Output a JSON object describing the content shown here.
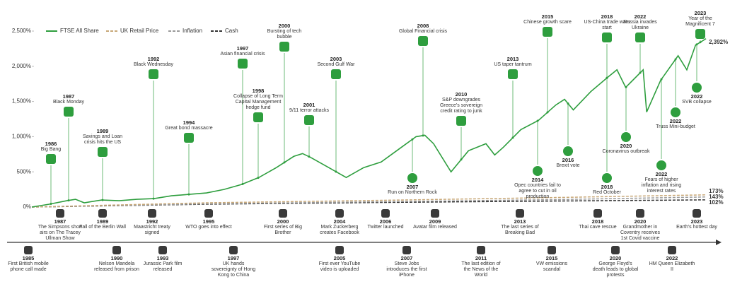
{
  "chart_data": {
    "type": "line",
    "xlim": [
      1985,
      2024
    ],
    "ylim": [
      0,
      2500
    ],
    "yticks": [
      {
        "value": 0,
        "label": "0%"
      },
      {
        "value": 500,
        "label": "500%"
      },
      {
        "value": 1000,
        "label": "1,000%"
      },
      {
        "value": 1500,
        "label": "1,500%"
      },
      {
        "value": 2000,
        "label": "2,000%"
      },
      {
        "value": 2500,
        "label": "2,500%"
      }
    ],
    "grid": false,
    "legend": "top-left",
    "series": [
      {
        "name": "FTSE All Share",
        "color": "#2e9e3e",
        "dashed": false,
        "x": [
          1985,
          1986,
          1987,
          1987.5,
          1988,
          1989,
          1990,
          1991,
          1992,
          1993,
          1994,
          1995,
          1996,
          1997,
          1998,
          1999,
          2000,
          2000.5,
          2001,
          2002,
          2003,
          2004,
          2005,
          2006,
          2007,
          2007.5,
          2008,
          2009,
          2010,
          2011,
          2011.5,
          2012,
          2013,
          2014,
          2015,
          2015.5,
          2016,
          2017,
          2018,
          2018.5,
          2019,
          2020,
          2020.2,
          2021,
          2022,
          2022.5,
          2023,
          2023.6
        ],
        "values": [
          0,
          40,
          90,
          110,
          60,
          100,
          90,
          110,
          120,
          160,
          180,
          200,
          250,
          320,
          420,
          560,
          720,
          760,
          700,
          560,
          420,
          560,
          640,
          820,
          1000,
          1020,
          900,
          500,
          800,
          900,
          740,
          850,
          1100,
          1230,
          1450,
          1530,
          1380,
          1640,
          1850,
          1950,
          1700,
          1950,
          1350,
          1800,
          2150,
          1950,
          2300,
          2392
        ],
        "value_labels": [
          null,
          null,
          null,
          null,
          null,
          null,
          null,
          null,
          null,
          null,
          null,
          null,
          null,
          null,
          null,
          null,
          null,
          null,
          null,
          null,
          null,
          null,
          null,
          null,
          null,
          null,
          null,
          null,
          null,
          null,
          null,
          null,
          null,
          null,
          null,
          null,
          null,
          null,
          null,
          null,
          null,
          null,
          null,
          null,
          null,
          null,
          null,
          "2,392%"
        ]
      },
      {
        "name": "UK Retail Price",
        "color": "#c8a878",
        "dashed": true,
        "x": [
          1985,
          1995,
          2005,
          2015,
          2023.6
        ],
        "values": [
          0,
          60,
          95,
          135,
          173
        ],
        "value_labels": [
          null,
          null,
          null,
          null,
          "173%"
        ]
      },
      {
        "name": "Inflation",
        "color": "#9a9a9a",
        "dashed": true,
        "x": [
          1985,
          1995,
          2005,
          2015,
          2023.6
        ],
        "values": [
          0,
          45,
          75,
          105,
          143
        ],
        "value_labels": [
          null,
          null,
          null,
          null,
          "143%"
        ]
      },
      {
        "name": "Cash",
        "color": "#333333",
        "dashed": true,
        "x": [
          1985,
          1995,
          2005,
          2015,
          2023.6
        ],
        "values": [
          0,
          40,
          65,
          85,
          102
        ],
        "value_labels": [
          null,
          null,
          null,
          null,
          "102%"
        ]
      }
    ],
    "annotations": [
      {
        "year": 1986,
        "text": "Big Bang"
      },
      {
        "year": 1987,
        "text": "Black Monday"
      },
      {
        "year": 1989,
        "text": "Savings and Loan crisis hits the US"
      },
      {
        "year": 1992,
        "text": "Black Wednesday"
      },
      {
        "year": 1994,
        "text": "Great bond massacre"
      },
      {
        "year": 1997,
        "text": "Asian financial crisis"
      },
      {
        "year": 1998,
        "text": "Collapse of Long Term Capital Management hedge fund"
      },
      {
        "year": 2000,
        "text": "Bursting of tech bubble"
      },
      {
        "year": 2001,
        "text": "9/11 terror attacks"
      },
      {
        "year": 2003,
        "text": "Second Gulf War"
      },
      {
        "year": 2007,
        "text": "Run on Northern Rock"
      },
      {
        "year": 2008,
        "text": "Global Financial crisis"
      },
      {
        "year": 2010,
        "text": "S&P downgrades Greece's sovereign credit rating to junk"
      },
      {
        "year": 2013,
        "text": "US taper tantrum"
      },
      {
        "year": 2014,
        "text": "Opec countries fail to agree to cut in oil production"
      },
      {
        "year": 2015,
        "text": "Chinese growth scare"
      },
      {
        "year": 2016,
        "text": "Brexit vote"
      },
      {
        "year": 2018,
        "text": "Red October"
      },
      {
        "year": 2018,
        "text": "US-China trade wars start"
      },
      {
        "year": 2020,
        "text": "Coronavirus outbreak"
      },
      {
        "year": 2022,
        "text": "Russia invades Ukraine"
      },
      {
        "year": 2022,
        "text": "Fears of higher inflation and rising interest rates"
      },
      {
        "year": 2022,
        "text": "Truss Mini-budget"
      },
      {
        "year": 2022,
        "text": "SVB collapse"
      },
      {
        "year": 2023,
        "text": "Year of the Magnificent 7"
      }
    ],
    "timeline_above": [
      {
        "year": 1987,
        "text": "The Simpsons short airs on The Tracey Ullman Show"
      },
      {
        "year": 1989,
        "text": "Fall of the Berlin Wall"
      },
      {
        "year": 1992,
        "text": "Maastricht treaty signed"
      },
      {
        "year": 1995,
        "text": "WTO goes into effect"
      },
      {
        "year": 2000,
        "text": "First series of Big Brother"
      },
      {
        "year": 2004,
        "text": "Mark Zuckerberg creates Facebook"
      },
      {
        "year": 2006,
        "text": "Twitter launched"
      },
      {
        "year": 2009,
        "text": "Avatar film released"
      },
      {
        "year": 2013,
        "text": "The last series of Breaking Bad"
      },
      {
        "year": 2018,
        "text": "Thai cave rescue"
      },
      {
        "year": 2020,
        "text": "Grandmother in Coventry receives 1st Covid vaccine"
      },
      {
        "year": 2023,
        "text": "Earth's hottest day"
      }
    ],
    "timeline_below": [
      {
        "year": 1985,
        "text": "First British mobile phone call made"
      },
      {
        "year": 1990,
        "text": "Nelson Mandela released from prison"
      },
      {
        "year": 1993,
        "text": "Jurassic Park film released"
      },
      {
        "year": 1997,
        "text": "UK hands sovereignty of Hong Kong to China"
      },
      {
        "year": 2005,
        "text": "First ever YouTube video is uploaded"
      },
      {
        "year": 2007,
        "text": "Steve Jobs introduces the first iPhone"
      },
      {
        "year": 2011,
        "text": "The last edition of the News of the World"
      },
      {
        "year": 2015,
        "text": "VW emissions scandal"
      },
      {
        "year": 2020,
        "text": "George Floyd's death leads to global protests"
      },
      {
        "year": 2022,
        "text": "HM Queen Elizabeth II"
      }
    ]
  }
}
